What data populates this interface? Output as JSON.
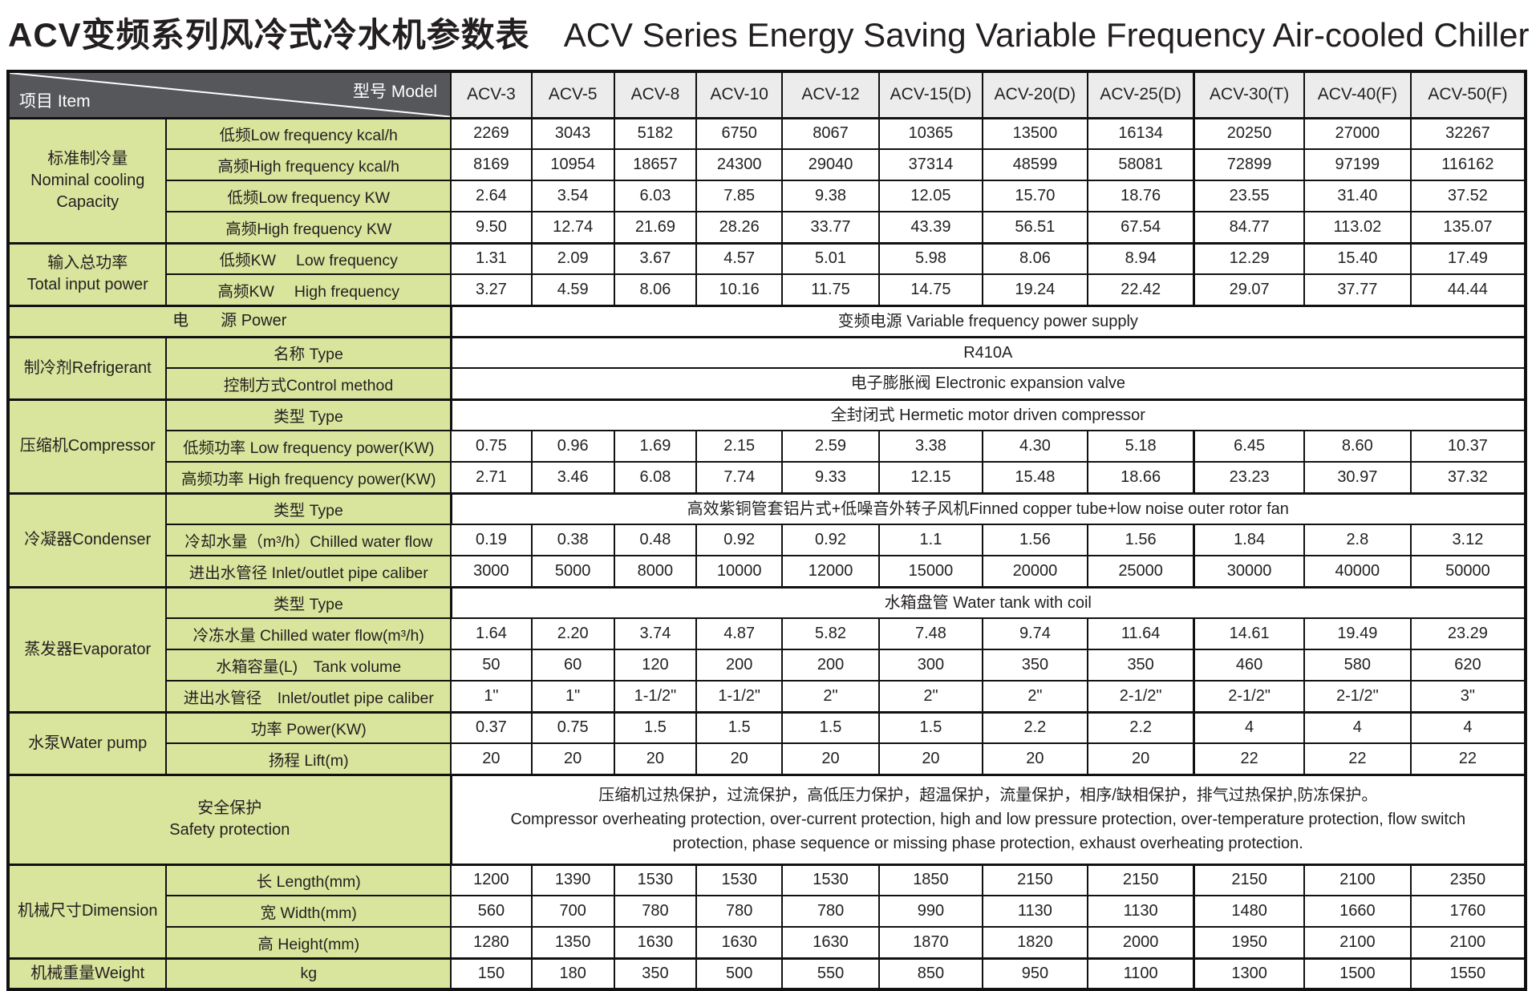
{
  "title": {
    "zh": "ACV变频系列风冷式冷水机参数表",
    "en": "ACV Series Energy Saving Variable Frequency Air-cooled Chiller"
  },
  "colors": {
    "label_green": "#d9e49c",
    "header_dark": "#56575a",
    "model_header_bg": "#ececed",
    "border": "#111111"
  },
  "table": {
    "corner_top": "型号  Model",
    "corner_bottom": "项目  Item",
    "models": [
      "ACV-3",
      "ACV-5",
      "ACV-8",
      "ACV-10",
      "ACV-12",
      "ACV-15(D)",
      "ACV-20(D)",
      "ACV-25(D)",
      "ACV-30(T)",
      "ACV-40(F)",
      "ACV-50(F)"
    ],
    "body": [
      {
        "section": "标准制冷量\nNominal cooling\nCapacity",
        "section_rows": 4,
        "label": "低频Low frequency  kcal/h",
        "values": [
          "2269",
          "3043",
          "5182",
          "6750",
          "8067",
          "10365",
          "13500",
          "16134",
          "20250",
          "27000",
          "32267"
        ]
      },
      {
        "label": "高频High frequency  kcal/h",
        "values": [
          "8169",
          "10954",
          "18657",
          "24300",
          "29040",
          "37314",
          "48599",
          "58081",
          "72899",
          "97199",
          "116162"
        ]
      },
      {
        "label": "低频Low frequency  KW",
        "values": [
          "2.64",
          "3.54",
          "6.03",
          "7.85",
          "9.38",
          "12.05",
          "15.70",
          "18.76",
          "23.55",
          "31.40",
          "37.52"
        ]
      },
      {
        "label": "高频High frequency  KW",
        "values": [
          "9.50",
          "12.74",
          "21.69",
          "28.26",
          "33.77",
          "43.39",
          "56.51",
          "67.54",
          "84.77",
          "113.02",
          "135.07"
        ]
      },
      {
        "section": "输入总功率\nTotal input power",
        "section_rows": 2,
        "label": "低频KW　 Low frequency",
        "values": [
          "1.31",
          "2.09",
          "3.67",
          "4.57",
          "5.01",
          "5.98",
          "8.06",
          "8.94",
          "12.29",
          "15.40",
          "17.49"
        ]
      },
      {
        "label": "高频KW　 High frequency",
        "values": [
          "3.27",
          "4.59",
          "8.06",
          "10.16",
          "11.75",
          "14.75",
          "19.24",
          "22.42",
          "29.07",
          "37.77",
          "44.44"
        ]
      },
      {
        "label_wide": "电　　源  Power",
        "merged": "变频电源 Variable frequency power supply"
      },
      {
        "section": "制冷剂Refrigerant",
        "section_rows": 2,
        "label": "名称  Type",
        "merged": "R410A"
      },
      {
        "label": "控制方式Control method",
        "merged": "电子膨胀阀 Electronic expansion valve"
      },
      {
        "section": "压缩机Compressor",
        "section_rows": 3,
        "label": "类型 Type",
        "merged": "全封闭式 Hermetic motor driven compressor"
      },
      {
        "label": "低频功率  Low frequency power(KW)",
        "values": [
          "0.75",
          "0.96",
          "1.69",
          "2.15",
          "2.59",
          "3.38",
          "4.30",
          "5.18",
          "6.45",
          "8.60",
          "10.37"
        ]
      },
      {
        "label": "高频功率 High frequency power(KW)",
        "values": [
          "2.71",
          "3.46",
          "6.08",
          "7.74",
          "9.33",
          "12.15",
          "15.48",
          "18.66",
          "23.23",
          "30.97",
          "37.32"
        ]
      },
      {
        "section": "冷凝器Condenser",
        "section_rows": 3,
        "label": "类型 Type",
        "merged": "高效紫铜管套铝片式+低噪音外转子风机Finned copper tube+low noise outer rotor fan"
      },
      {
        "label": "冷却水量（m³/h）Chilled water flow",
        "values": [
          "0.19",
          "0.38",
          "0.48",
          "0.92",
          "0.92",
          "1.1",
          "1.56",
          "1.56",
          "1.84",
          "2.8",
          "3.12"
        ]
      },
      {
        "label": "进出水管径 Inlet/outlet pipe caliber",
        "values": [
          "3000",
          "5000",
          "8000",
          "10000",
          "12000",
          "15000",
          "20000",
          "25000",
          "30000",
          "40000",
          "50000"
        ]
      },
      {
        "section": "蒸发器Evaporator",
        "section_rows": 4,
        "label": "类型 Type",
        "merged": "水箱盘管 Water tank with coil"
      },
      {
        "label": "冷冻水量 Chilled water flow(m³/h)",
        "values": [
          "1.64",
          "2.20",
          "3.74",
          "4.87",
          "5.82",
          "7.48",
          "9.74",
          "11.64",
          "14.61",
          "19.49",
          "23.29"
        ]
      },
      {
        "label": "水箱容量(L)　Tank volume",
        "values": [
          "50",
          "60",
          "120",
          "200",
          "200",
          "300",
          "350",
          "350",
          "460",
          "580",
          "620"
        ]
      },
      {
        "label": "进出水管径　Inlet/outlet pipe caliber",
        "values": [
          "1\"",
          "1\"",
          "1-1/2\"",
          "1-1/2\"",
          "2\"",
          "2\"",
          "2\"",
          "2-1/2\"",
          "2-1/2\"",
          "2-1/2\"",
          "3\""
        ]
      },
      {
        "section": "水泵Water pump",
        "section_rows": 2,
        "label": "功率  Power(KW)",
        "values": [
          "0.37",
          "0.75",
          "1.5",
          "1.5",
          "1.5",
          "1.5",
          "2.2",
          "2.2",
          "4",
          "4",
          "4"
        ]
      },
      {
        "label": "扬程  Lift(m)",
        "values": [
          "20",
          "20",
          "20",
          "20",
          "20",
          "20",
          "20",
          "20",
          "22",
          "22",
          "22"
        ]
      },
      {
        "label_wide": "安全保护\nSafety protection",
        "tall": true,
        "merged": "压缩机过热保护，过流保护，高低压力保护，超温保护，流量保护，相序/缺相保护，排气过热保护,防冻保护。\nCompressor overheating protection, over-current protection, high and low pressure protection, over-temperature protection, flow switch protection, phase sequence or missing phase protection, exhaust overheating protection."
      },
      {
        "section": "机械尺寸Dimension",
        "section_rows": 3,
        "label": "长  Length(mm)",
        "values": [
          "1200",
          "1390",
          "1530",
          "1530",
          "1530",
          "1850",
          "2150",
          "2150",
          "2150",
          "2100",
          "2350"
        ]
      },
      {
        "label": "宽  Width(mm)",
        "values": [
          "560",
          "700",
          "780",
          "780",
          "780",
          "990",
          "1130",
          "1130",
          "1480",
          "1660",
          "1760"
        ]
      },
      {
        "label": "高  Height(mm)",
        "values": [
          "1280",
          "1350",
          "1630",
          "1630",
          "1630",
          "1870",
          "1820",
          "2000",
          "1950",
          "2100",
          "2100"
        ]
      },
      {
        "section": "机械重量Weight",
        "section_rows": 1,
        "label": "kg",
        "values": [
          "150",
          "180",
          "350",
          "500",
          "550",
          "850",
          "950",
          "1100",
          "1300",
          "1500",
          "1550"
        ]
      }
    ]
  }
}
